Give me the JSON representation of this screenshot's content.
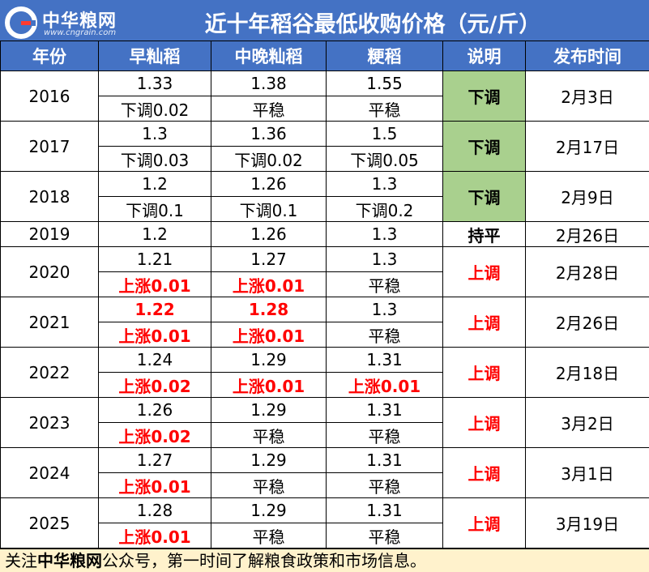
{
  "brand": {
    "name": "中华粮网",
    "site": "www.cngrain.com"
  },
  "title": "近十年稻谷最低收购价格（元/斤）",
  "headers": {
    "year": "年份",
    "early": "早籼稻",
    "mid_late": "中晚籼稻",
    "japonica": "粳稻",
    "note": "说明",
    "date": "发布时间"
  },
  "rows": [
    {
      "year": "2016",
      "early": "1.33",
      "early_change": "下调0.02",
      "mid": "1.38",
      "mid_change": "平稳",
      "jap": "1.55",
      "jap_change": "平稳",
      "note": "下调",
      "date": "2月3日"
    },
    {
      "year": "2017",
      "early": "1.3",
      "early_change": "下调0.03",
      "mid": "1.36",
      "mid_change": "下调0.02",
      "jap": "1.5",
      "jap_change": "下调0.05",
      "note": "下调",
      "date": "2月17日"
    },
    {
      "year": "2018",
      "early": "1.2",
      "early_change": "下调0.1",
      "mid": "1.26",
      "mid_change": "下调0.1",
      "jap": "1.3",
      "jap_change": "下调0.2",
      "note": "下调",
      "date": "2月9日"
    },
    {
      "year": "2019",
      "early": "1.2",
      "mid": "1.26",
      "jap": "1.3",
      "note": "持平",
      "date": "2月26日"
    },
    {
      "year": "2020",
      "early": "1.21",
      "early_change_label": "上涨",
      "early_change_value": "0.01",
      "mid": "1.27",
      "mid_change_label": "上涨",
      "mid_change_value": "0.01",
      "jap": "1.3",
      "jap_change": "平稳",
      "note": "上调",
      "date": "2月28日"
    },
    {
      "year": "2021",
      "early": "1.22",
      "early_change_label": "上涨",
      "early_change_value": "0.01",
      "mid": "1.28",
      "mid_change_label": "上涨",
      "mid_change_value": "0.01",
      "jap": "1.3",
      "jap_change": "平稳",
      "note": "上调",
      "date": "2月26日"
    },
    {
      "year": "2022",
      "early": "1.24",
      "early_change_label": "上涨",
      "early_change_value": "0.02",
      "mid": "1.29",
      "mid_change_label": "上涨",
      "mid_change_value": "0.01",
      "jap": "1.31",
      "jap_change_label": "上涨",
      "jap_change_value": "0.01",
      "note": "上调",
      "date": "2月18日"
    },
    {
      "year": "2023",
      "early": "1.26",
      "early_change_label": "上涨",
      "early_change_value": "0.02",
      "mid": "1.29",
      "mid_change": "平稳",
      "jap": "1.31",
      "jap_change": "平稳",
      "note": "上调",
      "date": "3月2日"
    },
    {
      "year": "2024",
      "early": "1.27",
      "early_change_label": "上涨",
      "early_change_value": "0.01",
      "mid": "1.29",
      "mid_change": "平稳",
      "jap": "1.31",
      "jap_change": "平稳",
      "note": "上调",
      "date": "3月1日"
    },
    {
      "year": "2025",
      "early": "1.28",
      "early_change_label": "上涨",
      "early_change_value": "0.01",
      "mid": "1.29",
      "mid_change": "平稳",
      "jap": "1.31",
      "jap_change": "平稳",
      "note": "上调",
      "date": "3月19日"
    }
  ],
  "footer": {
    "prefix": "关注",
    "brand": "中华粮网",
    "suffix": "公众号，第一时间了解粮食政策和市场信息。"
  },
  "colors": {
    "header_bg": "#4472c4",
    "down_bg": "#a9d08e",
    "up_text": "#ff0000",
    "footer_bg": "#fff2cc"
  }
}
